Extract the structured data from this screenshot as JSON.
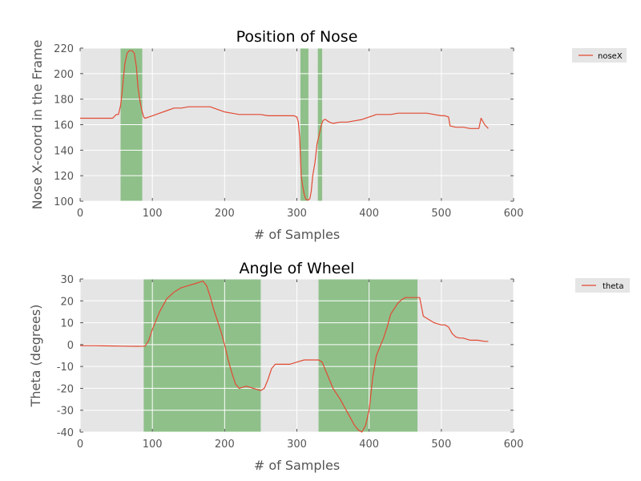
{
  "colors": {
    "plot_bg": "#e5e5e5",
    "grid": "#ffffff",
    "line": "#e24a33",
    "highlight": "#8fc08a",
    "text": "#555555",
    "legend_bg": "#e5e5e5"
  },
  "chart_data": [
    {
      "type": "line",
      "title": "Position of Nose",
      "xlabel": "# of Samples",
      "ylabel": "Nose X-coord in the Frame",
      "xlim": [
        0,
        600
      ],
      "ylim": [
        100,
        220
      ],
      "xticks": [
        0,
        100,
        200,
        300,
        400,
        500,
        600
      ],
      "yticks": [
        100,
        120,
        140,
        160,
        180,
        200,
        220
      ],
      "grid": true,
      "legend": "outside-top-right",
      "highlight_spans": [
        [
          56,
          86
        ],
        [
          305,
          316
        ],
        [
          329,
          335
        ]
      ],
      "series": [
        {
          "name": "noseX",
          "x": [
            0,
            20,
            40,
            45,
            50,
            53,
            56,
            58,
            60,
            62,
            65,
            68,
            70,
            72,
            75,
            78,
            80,
            83,
            86,
            88,
            90,
            95,
            100,
            110,
            120,
            130,
            140,
            150,
            160,
            170,
            180,
            190,
            200,
            210,
            220,
            230,
            240,
            250,
            260,
            270,
            280,
            290,
            296,
            300,
            302,
            304,
            306,
            308,
            310,
            312,
            314,
            316,
            318,
            320,
            322,
            325,
            328,
            330,
            332,
            334,
            336,
            338,
            340,
            342,
            345,
            350,
            360,
            370,
            380,
            390,
            400,
            405,
            410,
            420,
            430,
            440,
            450,
            460,
            470,
            480,
            490,
            500,
            505,
            510,
            512,
            520,
            530,
            540,
            550,
            552,
            555,
            560,
            565
          ],
          "y": [
            165,
            165,
            165,
            165,
            168,
            168,
            175,
            185,
            197,
            208,
            216,
            218,
            218,
            218,
            216,
            205,
            190,
            178,
            170,
            166,
            165,
            166,
            167,
            169,
            171,
            173,
            173,
            174,
            174,
            174,
            174,
            172,
            170,
            169,
            168,
            168,
            168,
            168,
            167,
            167,
            167,
            167,
            167,
            166,
            162,
            150,
            120,
            112,
            106,
            102,
            101,
            101,
            102,
            108,
            120,
            130,
            145,
            150,
            155,
            160,
            163,
            164,
            164,
            163,
            162,
            161,
            162,
            162,
            163,
            164,
            166,
            167,
            168,
            168,
            168,
            169,
            169,
            169,
            169,
            169,
            168,
            167,
            167,
            166,
            159,
            158,
            158,
            157,
            157,
            157,
            165,
            160,
            157
          ]
        }
      ]
    },
    {
      "type": "line",
      "title": "Angle of Wheel",
      "xlabel": "# of Samples",
      "ylabel": "Theta (degrees)",
      "xlim": [
        0,
        600
      ],
      "ylim": [
        -40,
        30
      ],
      "xticks": [
        0,
        100,
        200,
        300,
        400,
        500,
        600
      ],
      "yticks": [
        -40,
        -30,
        -20,
        -10,
        0,
        10,
        20,
        30
      ],
      "grid": true,
      "legend": "outside-top-right",
      "highlight_spans": [
        [
          88,
          250
        ],
        [
          330,
          467
        ]
      ],
      "series": [
        {
          "name": "theta",
          "x": [
            0,
            20,
            40,
            60,
            80,
            90,
            95,
            100,
            105,
            110,
            115,
            120,
            130,
            140,
            150,
            160,
            165,
            170,
            175,
            180,
            185,
            190,
            195,
            200,
            205,
            210,
            215,
            220,
            230,
            240,
            250,
            255,
            260,
            265,
            270,
            275,
            280,
            290,
            300,
            310,
            320,
            330,
            335,
            340,
            345,
            350,
            360,
            370,
            375,
            380,
            385,
            390,
            395,
            400,
            405,
            410,
            420,
            425,
            430,
            440,
            445,
            450,
            460,
            465,
            470,
            475,
            480,
            490,
            500,
            505,
            510,
            515,
            520,
            525,
            530,
            540,
            550,
            560,
            565
          ],
          "y": [
            -0.5,
            -0.5,
            -0.6,
            -0.7,
            -0.8,
            -0.7,
            2,
            7,
            11,
            15,
            18,
            21,
            24,
            26,
            27,
            28,
            28.5,
            29,
            27,
            22,
            16,
            11,
            6,
            0,
            -7,
            -13,
            -18,
            -20,
            -19,
            -20,
            -21,
            -20,
            -16,
            -11,
            -9,
            -9,
            -9,
            -9,
            -8,
            -7,
            -7,
            -7,
            -8,
            -12,
            -16,
            -20,
            -25,
            -31,
            -34,
            -37,
            -39,
            -40,
            -37,
            -30,
            -15,
            -5,
            3,
            8,
            14,
            19,
            20.5,
            21.5,
            21.5,
            21.5,
            21.5,
            13,
            12,
            10,
            9,
            9,
            8,
            5,
            3.5,
            3,
            3,
            2,
            2,
            1.5,
            1.5
          ]
        }
      ]
    }
  ]
}
